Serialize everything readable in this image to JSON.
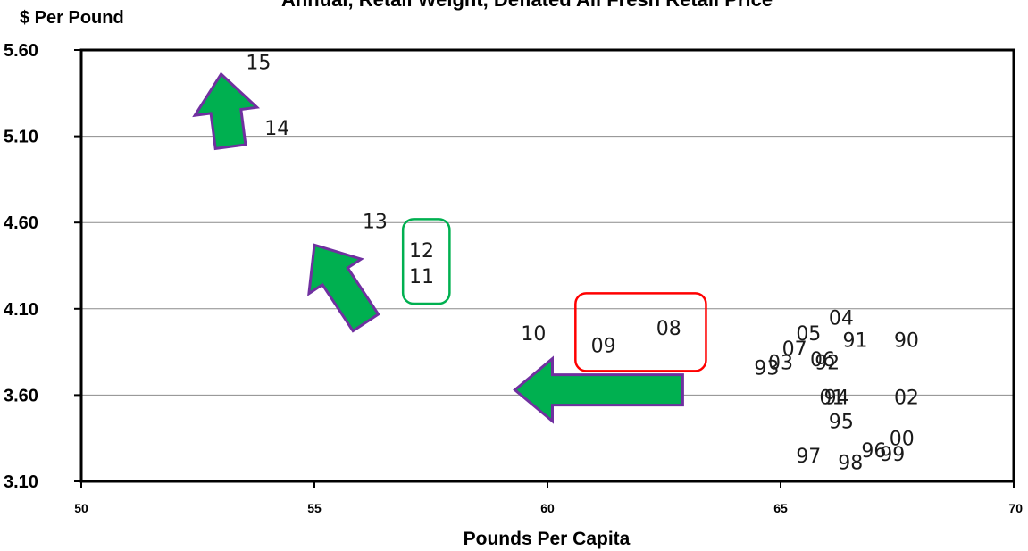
{
  "chart_data": {
    "type": "scatter",
    "title": "Annual, Retail Weight, Deflated All Fresh Retail Price",
    "ylabel": "$ Per Pound",
    "xlabel": "Pounds Per Capita",
    "xlim": [
      50,
      70
    ],
    "ylim": [
      3.1,
      5.6
    ],
    "x_ticks": [
      "50",
      "55",
      "60",
      "65",
      "70"
    ],
    "y_ticks": [
      "3.10",
      "3.60",
      "4.10",
      "4.60",
      "5.10",
      "5.60"
    ],
    "grid": "horizontal",
    "points": [
      {
        "label": "90",
        "x": 67.7,
        "y": 3.92
      },
      {
        "label": "91",
        "x": 66.6,
        "y": 3.92
      },
      {
        "label": "92",
        "x": 66.0,
        "y": 3.79
      },
      {
        "label": "93",
        "x": 64.7,
        "y": 3.76
      },
      {
        "label": "94",
        "x": 66.2,
        "y": 3.59
      },
      {
        "label": "95",
        "x": 66.3,
        "y": 3.45
      },
      {
        "label": "96",
        "x": 67.0,
        "y": 3.28
      },
      {
        "label": "97",
        "x": 65.6,
        "y": 3.25
      },
      {
        "label": "98",
        "x": 66.5,
        "y": 3.21
      },
      {
        "label": "99",
        "x": 67.4,
        "y": 3.26
      },
      {
        "label": "00",
        "x": 67.6,
        "y": 3.35
      },
      {
        "label": "01",
        "x": 66.1,
        "y": 3.59
      },
      {
        "label": "02",
        "x": 67.7,
        "y": 3.59
      },
      {
        "label": "03",
        "x": 65.0,
        "y": 3.79
      },
      {
        "label": "04",
        "x": 66.3,
        "y": 4.05
      },
      {
        "label": "05",
        "x": 65.6,
        "y": 3.96
      },
      {
        "label": "06",
        "x": 65.9,
        "y": 3.81
      },
      {
        "label": "07",
        "x": 65.3,
        "y": 3.87
      },
      {
        "label": "08",
        "x": 62.6,
        "y": 3.99
      },
      {
        "label": "09",
        "x": 61.2,
        "y": 3.89
      },
      {
        "label": "10",
        "x": 59.7,
        "y": 3.96
      },
      {
        "label": "11",
        "x": 57.3,
        "y": 4.29
      },
      {
        "label": "12",
        "x": 57.3,
        "y": 4.44
      },
      {
        "label": "13",
        "x": 56.3,
        "y": 4.61
      },
      {
        "label": "14",
        "x": 54.2,
        "y": 5.15
      },
      {
        "label": "15",
        "x": 53.8,
        "y": 5.53
      }
    ],
    "highlight_boxes": [
      {
        "color": "#ff0000",
        "x": [
          60.6,
          63.4
        ],
        "y": [
          3.74,
          4.19
        ]
      },
      {
        "color": "#00b050",
        "x": [
          56.9,
          57.9
        ],
        "y": [
          4.13,
          4.62
        ]
      }
    ],
    "arrows": [
      {
        "from": [
          62.9,
          3.63
        ],
        "to": [
          59.3,
          3.63
        ]
      },
      {
        "from": [
          56.1,
          4.02
        ],
        "to": [
          55.0,
          4.47
        ]
      },
      {
        "from": [
          53.2,
          5.04
        ],
        "to": [
          53.0,
          5.46
        ]
      }
    ],
    "arrow_fill": "#00b050",
    "arrow_stroke": "#7030a0"
  }
}
